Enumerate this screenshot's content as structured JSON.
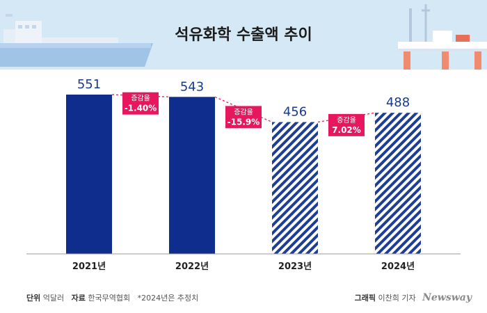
{
  "chart_data": {
    "type": "bar",
    "title": "석유화학 수출액 추이",
    "categories": [
      "2021년",
      "2022년",
      "2023년",
      "2024년"
    ],
    "values": [
      551,
      543,
      456,
      488
    ],
    "value_labels": [
      "551",
      "543",
      "456",
      "488"
    ],
    "estimated": [
      false,
      false,
      true,
      true
    ],
    "change_rates": [
      {
        "from": "2021년",
        "to": "2022년",
        "label": "증감율",
        "value": "-1.40%"
      },
      {
        "from": "2022년",
        "to": "2023년",
        "label": "증감율",
        "value": "-15.9%"
      },
      {
        "from": "2023년",
        "to": "2024년",
        "label": "증감율",
        "value": "7.02%"
      }
    ],
    "ylim": [
      0,
      551
    ],
    "grid": false,
    "colors": {
      "bar": "#0f2d8c",
      "value_text": "#1a3a8f",
      "rate_box": "#e6175c",
      "header_bg": "#d5e8f6"
    }
  },
  "footer": {
    "unit_key": "단위",
    "unit_value": "억달러",
    "source_key": "자료",
    "source_value": "한국무역협회",
    "note": "*2024년은 추정치",
    "credit_key": "그래픽",
    "credit_value": "이찬희 기자",
    "brand": "Newsway"
  }
}
